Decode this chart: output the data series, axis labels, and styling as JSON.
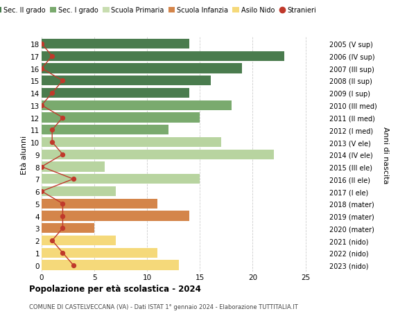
{
  "ages": [
    18,
    17,
    16,
    15,
    14,
    13,
    12,
    11,
    10,
    9,
    8,
    7,
    6,
    5,
    4,
    3,
    2,
    1,
    0
  ],
  "right_labels": [
    "2005 (V sup)",
    "2006 (IV sup)",
    "2007 (III sup)",
    "2008 (II sup)",
    "2009 (I sup)",
    "2010 (III med)",
    "2011 (II med)",
    "2012 (I med)",
    "2013 (V ele)",
    "2014 (IV ele)",
    "2015 (III ele)",
    "2016 (II ele)",
    "2017 (I ele)",
    "2018 (mater)",
    "2019 (mater)",
    "2020 (mater)",
    "2021 (nido)",
    "2022 (nido)",
    "2023 (nido)"
  ],
  "bar_values": [
    14,
    23,
    19,
    16,
    14,
    18,
    15,
    12,
    17,
    22,
    6,
    15,
    7,
    11,
    14,
    5,
    7,
    11,
    13
  ],
  "bar_colors": [
    "#4a7c4e",
    "#4a7c4e",
    "#4a7c4e",
    "#4a7c4e",
    "#4a7c4e",
    "#7aaa6e",
    "#7aaa6e",
    "#7aaa6e",
    "#b8d4a0",
    "#b8d4a0",
    "#b8d4a0",
    "#b8d4a0",
    "#b8d4a0",
    "#d4854a",
    "#d4854a",
    "#d4854a",
    "#f5d97a",
    "#f5d97a",
    "#f5d97a"
  ],
  "stranieri_values": [
    0,
    1,
    0,
    2,
    1,
    0,
    2,
    1,
    1,
    2,
    0,
    3,
    0,
    2,
    2,
    2,
    1,
    2,
    3
  ],
  "legend_labels": [
    "Sec. II grado",
    "Sec. I grado",
    "Scuola Primaria",
    "Scuola Infanzia",
    "Asilo Nido",
    "Stranieri"
  ],
  "legend_colors": [
    "#4a7c4e",
    "#7aaa6e",
    "#c8ddb0",
    "#d4854a",
    "#f5d97a",
    "#c0392b"
  ],
  "title_bold": "Popolazione per età scolastica - 2024",
  "subtitle": "COMUNE DI CASTELVECCANA (VA) - Dati ISTAT 1° gennaio 2024 - Elaborazione TUTTITALIA.IT",
  "ylabel_left": "Età alunni",
  "ylabel_right": "Anni di nascita",
  "xlim": [
    0,
    27
  ],
  "xticks": [
    0,
    5,
    10,
    15,
    20,
    25
  ],
  "background_color": "#ffffff",
  "grid_color": "#cccccc"
}
